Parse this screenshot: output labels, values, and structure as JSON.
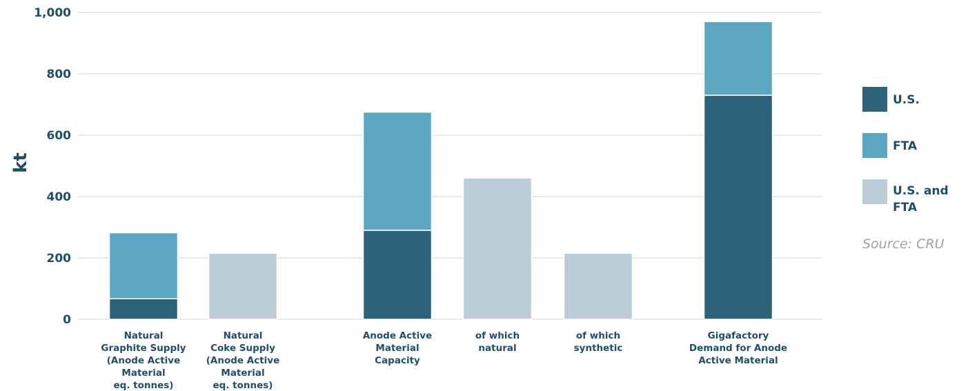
{
  "chart_data": {
    "type": "bar",
    "stacked": true,
    "ylabel": "kt",
    "ylim": [
      0,
      1000
    ],
    "yticks": [
      "0",
      "200",
      "400",
      "600",
      "800",
      "1,000"
    ],
    "ytick_values": [
      0,
      200,
      400,
      600,
      800,
      1000
    ],
    "grid": true,
    "categories": [
      [
        "Natural",
        "Graphite Supply",
        "(Anode Active",
        "Material",
        "eq. tonnes)"
      ],
      [
        "Natural",
        "Coke Supply",
        "(Anode Active",
        "Material",
        "eq. tonnes)"
      ],
      [
        "Anode Active",
        "Material",
        "Capacity"
      ],
      [
        "of which",
        "natural"
      ],
      [
        "of which",
        "synthetic"
      ],
      [
        "Gigafactory",
        "Demand for Anode",
        "Active Material"
      ]
    ],
    "series": [
      {
        "name": "U.S.",
        "color": "#2e6279",
        "values": [
          67,
          0,
          290,
          0,
          0,
          730
        ]
      },
      {
        "name": "FTA",
        "color": "#5ba6c1",
        "values": [
          215,
          0,
          385,
          0,
          0,
          240
        ]
      },
      {
        "name": "U.S. and FTA",
        "color": "#bacdd9",
        "values": [
          0,
          215,
          0,
          460,
          215,
          0
        ]
      }
    ],
    "legend": {
      "position": "right",
      "labels": [
        [
          "U.S."
        ],
        [
          "FTA"
        ],
        [
          "U.S. and",
          "FTA"
        ]
      ]
    },
    "source": "Source: CRU"
  }
}
